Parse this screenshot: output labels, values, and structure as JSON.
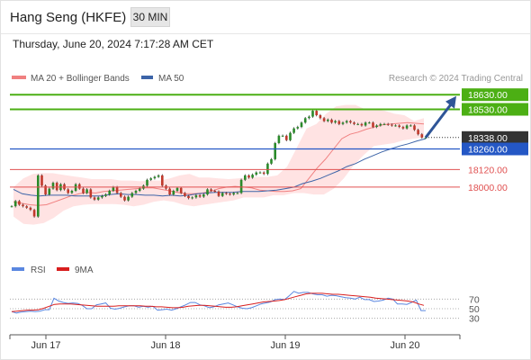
{
  "header": {
    "title": "Hang Seng (HKFE)",
    "timeframe": "30 MIN",
    "datetime": "Thursday, June 20, 2024 7:17:28 AM CET"
  },
  "colors": {
    "bb_band": "#ffd9d9",
    "ma20": "#f08080",
    "ma50": "#3c64a8",
    "resistance": "#4caf14",
    "support_blue": "#2457c5",
    "support_red": "#e05050",
    "current": "#333333",
    "arrow": "#2f5597",
    "candle_up": "#2a8a2a",
    "candle_down": "#c0392b",
    "rsi": "#5a87e0",
    "rsi_ma": "#d81e1e"
  },
  "chart_data": [
    {
      "type": "line",
      "title": "Hang Seng (HKFE)",
      "legend": [
        {
          "label": "MA 20 + Bollinger Bands",
          "color": "#f08080"
        },
        {
          "label": "MA 50",
          "color": "#3c64a8"
        }
      ],
      "watermark": "Research © 2024 Trading Central",
      "x_ticks": [
        "Jun 17",
        "Jun 18",
        "Jun 19",
        "Jun 20"
      ],
      "ylim": [
        17540,
        18680
      ],
      "levels": [
        {
          "label": "18630.00",
          "value": 18630,
          "kind": "resistance"
        },
        {
          "label": "18530.00",
          "value": 18530,
          "kind": "resistance"
        },
        {
          "label": "18338.00",
          "value": 18338,
          "kind": "current"
        },
        {
          "label": "18260.00",
          "value": 18260,
          "kind": "support_blue"
        },
        {
          "label": "18120.00",
          "value": 18120,
          "kind": "support_red"
        },
        {
          "label": "18000.00",
          "value": 18000,
          "kind": "support_red"
        }
      ],
      "series": [
        {
          "name": "Price",
          "values": [
            17870,
            17905,
            17880,
            17870,
            17860,
            17845,
            17800,
            18080,
            18010,
            17950,
            17990,
            18030,
            17980,
            18020,
            17985,
            17960,
            17975,
            18020,
            17990,
            17960,
            17985,
            17930,
            17915,
            17930,
            17940,
            17950,
            17975,
            18000,
            17960,
            17935,
            17910,
            17935,
            17960,
            17975,
            17990,
            18010,
            18050,
            18060,
            18070,
            18080,
            18010,
            17990,
            17950,
            17975,
            17995,
            17960,
            17940,
            17925,
            17930,
            17945,
            17935,
            17950,
            17985,
            17975,
            17970,
            17940,
            17960,
            17955,
            17950,
            17960,
            17960,
            18050,
            18080,
            18065,
            18085,
            18100,
            18100,
            18090,
            18160,
            18190,
            18300,
            18350,
            18350,
            18320,
            18370,
            18400,
            18410,
            18440,
            18470,
            18480,
            18520,
            18490,
            18470,
            18450,
            18460,
            18440,
            18450,
            18430,
            18440,
            18450,
            18440,
            18430,
            18430,
            18420,
            18440,
            18440,
            18410,
            18420,
            18430,
            18430,
            18425,
            18420,
            18420,
            18410,
            18400,
            18420,
            18420,
            18390,
            18360,
            18338,
            18338
          ]
        },
        {
          "name": "MA 20",
          "values": [
            17900,
            17890,
            17880,
            17875,
            17880,
            17900,
            17920,
            17940,
            17955,
            17965,
            17960,
            17970,
            17975,
            17980,
            17985,
            17990,
            17995,
            17995,
            17985,
            17975,
            17965,
            17955,
            17955,
            17960,
            17970,
            17990,
            18000,
            18005,
            18000,
            17995,
            17980,
            17975,
            17970,
            17970,
            17975,
            17990,
            18060,
            18130,
            18190,
            18260,
            18330,
            18360,
            18375,
            18395,
            18410,
            18425,
            18430,
            18435,
            18440,
            18435,
            18430
          ]
        },
        {
          "name": "MA 50",
          "values": [
            17985,
            17955,
            17945,
            17940,
            17945,
            17945,
            17945,
            17940,
            17940,
            17940,
            17940,
            17950,
            17955,
            17950,
            17950,
            17945,
            17945,
            17940,
            17945,
            17940,
            17945,
            17955,
            17960,
            17965,
            17965,
            17965,
            17970,
            17970,
            17970,
            17975,
            17980,
            17990,
            18000,
            18025,
            18040,
            18060,
            18085,
            18110,
            18140,
            18160,
            18190,
            18215,
            18240,
            18260,
            18280,
            18295,
            18315,
            18330
          ]
        },
        {
          "name": "BB upper",
          "values": [
            18000,
            18060,
            18090,
            18095,
            18095,
            18085,
            18075,
            18065,
            18055,
            18055,
            18055,
            18045,
            18045,
            18040,
            18045,
            18045,
            18060,
            18080,
            18090,
            18065,
            18065,
            18060,
            18055,
            18060,
            18065,
            18070,
            18070,
            18080,
            18140,
            18270,
            18400,
            18430,
            18500,
            18550,
            18560,
            18560,
            18530,
            18530,
            18520,
            18500,
            18490,
            18450,
            18470
          ]
        },
        {
          "name": "BB lower",
          "values": [
            17800,
            17750,
            17745,
            17755,
            17790,
            17840,
            17870,
            17880,
            17885,
            17885,
            17885,
            17880,
            17870,
            17880,
            17900,
            17910,
            17900,
            17880,
            17870,
            17880,
            17890,
            17900,
            17910,
            17930,
            17930,
            17930,
            17945,
            17945,
            17960,
            17960,
            17950,
            17950,
            17990,
            18060,
            18150,
            18220,
            18280,
            18290,
            18300,
            18320,
            18330,
            18340
          ]
        },
        {
          "name": "Projection",
          "values": [
            18338,
            18590
          ]
        }
      ]
    },
    {
      "type": "line",
      "legend": [
        {
          "label": "RSI",
          "color": "#5a87e0"
        },
        {
          "label": "9MA",
          "color": "#d81e1e"
        }
      ],
      "y_ticks": [
        "70",
        "50",
        "30"
      ],
      "ylim": [
        5,
        95
      ],
      "series": [
        {
          "name": "RSI",
          "values": [
            44,
            41,
            43,
            44,
            45,
            44,
            45,
            48,
            48,
            72,
            66,
            63,
            61,
            62,
            61,
            57,
            50,
            50,
            58,
            60,
            62,
            51,
            49,
            51,
            54,
            56,
            56,
            53,
            55,
            53,
            55,
            47,
            48,
            49,
            47,
            50,
            54,
            58,
            63,
            63,
            58,
            56,
            52,
            54,
            58,
            60,
            62,
            58,
            54,
            51,
            50,
            52,
            56,
            60,
            62,
            64,
            69,
            70,
            69,
            77,
            86,
            82,
            84,
            84,
            81,
            79,
            79,
            76,
            78,
            77,
            75,
            73,
            72,
            70,
            74,
            69,
            69,
            65,
            66,
            68,
            72,
            70,
            60,
            60,
            59,
            63,
            68,
            46,
            46
          ]
        },
        {
          "name": "9MA",
          "values": [
            44,
            45,
            46,
            47,
            47,
            48,
            51,
            55,
            59,
            60,
            60,
            60,
            59,
            58,
            57,
            56,
            55,
            55,
            55,
            55,
            56,
            56,
            56,
            56,
            56,
            55,
            55,
            54,
            54,
            53,
            52,
            52,
            53,
            55,
            56,
            57,
            57,
            56,
            55,
            54,
            53,
            53,
            54,
            56,
            58,
            60,
            62,
            64,
            65,
            66,
            67,
            69,
            72,
            75,
            78,
            81,
            82,
            82,
            82,
            81,
            80,
            80,
            79,
            78,
            77,
            76,
            75,
            74,
            72,
            71,
            70,
            69,
            68,
            67,
            66,
            64,
            60,
            57
          ]
        }
      ]
    }
  ]
}
